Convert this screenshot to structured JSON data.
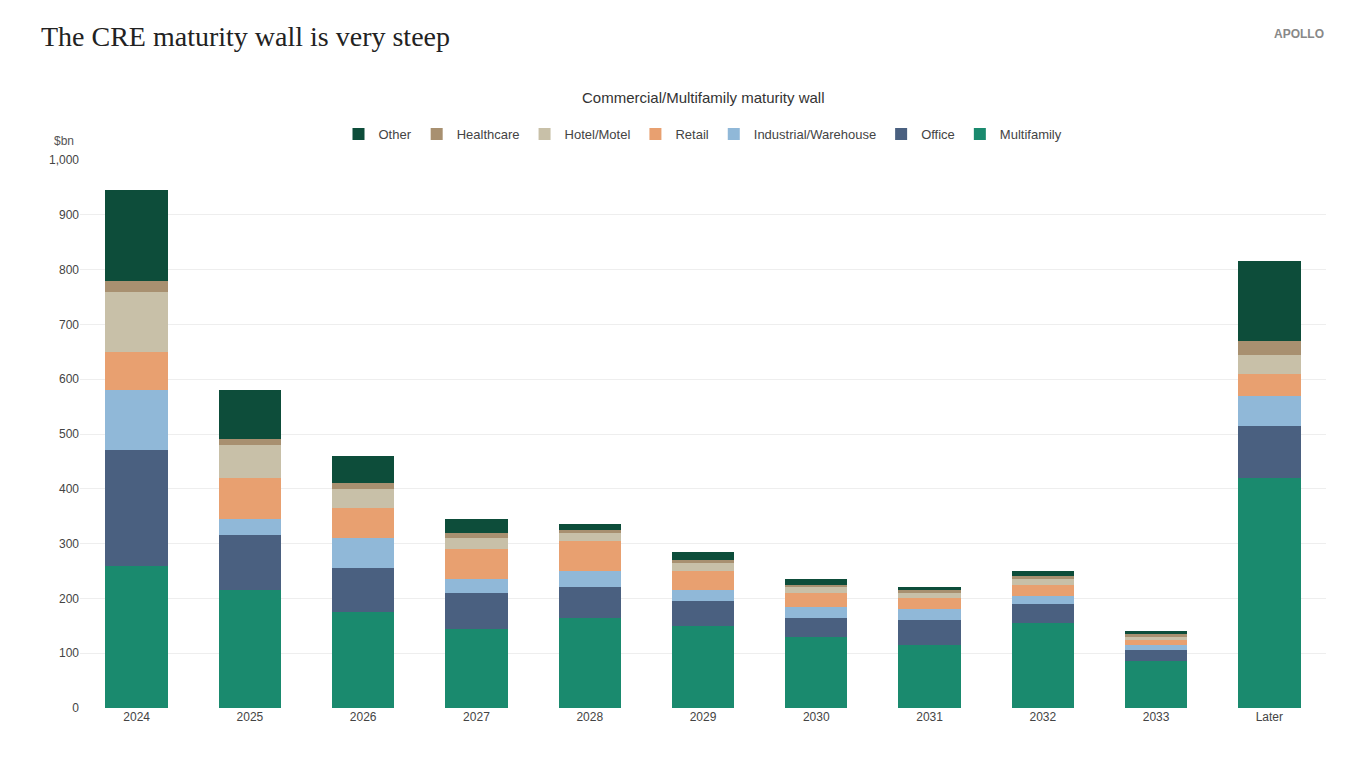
{
  "chart_data": {
    "type": "bar",
    "stacked": true,
    "title": "The CRE maturity wall is very steep",
    "subtitle": "Commercial/Multifamily maturity wall",
    "ylabel": "$bn",
    "annotations": [
      "APOLLO"
    ],
    "categories": [
      "2024",
      "2025",
      "2026",
      "2027",
      "2028",
      "2029",
      "2030",
      "2031",
      "2032",
      "2033",
      "Later"
    ],
    "series": [
      {
        "name": "Multifamily",
        "color": "#1a8a6e",
        "values": [
          260,
          215,
          175,
          145,
          165,
          150,
          130,
          115,
          155,
          85,
          420
        ]
      },
      {
        "name": "Office",
        "color": "#4a6080",
        "values": [
          210,
          100,
          80,
          65,
          55,
          45,
          35,
          45,
          35,
          20,
          95
        ]
      },
      {
        "name": "Industrial/Warehouse",
        "color": "#90b8d8",
        "values": [
          110,
          30,
          55,
          25,
          30,
          20,
          20,
          20,
          15,
          10,
          55
        ]
      },
      {
        "name": "Retail",
        "color": "#e8a070",
        "values": [
          70,
          75,
          55,
          55,
          55,
          35,
          25,
          20,
          20,
          10,
          40
        ]
      },
      {
        "name": "Hotel/Motel",
        "color": "#c8c0a8",
        "values": [
          110,
          60,
          35,
          20,
          15,
          15,
          10,
          10,
          10,
          5,
          35
        ]
      },
      {
        "name": "Healthcare",
        "color": "#a89070",
        "values": [
          20,
          10,
          10,
          10,
          5,
          5,
          5,
          5,
          5,
          5,
          25
        ]
      },
      {
        "name": "Other",
        "color": "#0d4d3a",
        "values": [
          165,
          90,
          50,
          25,
          10,
          15,
          10,
          5,
          10,
          5,
          145
        ]
      }
    ],
    "ylim": [
      0,
      1000
    ],
    "yticks": [
      0,
      100,
      200,
      300,
      400,
      500,
      600,
      700,
      800,
      900,
      {
        "value": 1000,
        "label": "1,000"
      }
    ],
    "grid": true,
    "legend": "top"
  }
}
